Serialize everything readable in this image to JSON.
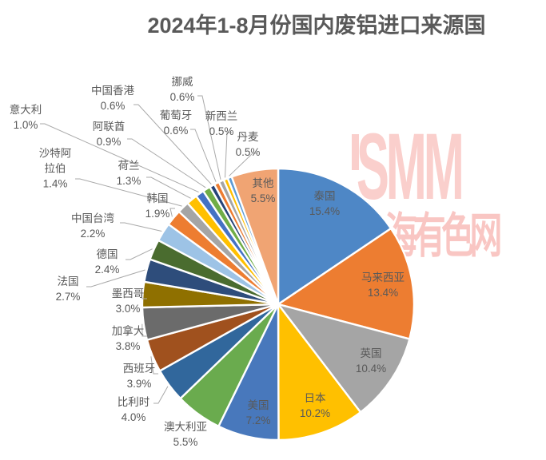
{
  "title": "2024年1-8月份国内废铝进口来源国",
  "watermark": {
    "brand": "SMM",
    "site": "上海有色网",
    "color": "#FACFCC"
  },
  "colors": {
    "background": "#FFFFFF",
    "title_text": "#595959",
    "label_text": "#595959",
    "leader_line": "#A9A9A9",
    "slice_border": "#FFFFFF"
  },
  "chart_data": {
    "type": "pie",
    "title": "2024年1-8月份国内废铝进口来源国",
    "value_format": "percent",
    "rotation": "clockwise-from-12-oclock",
    "legend": "none",
    "label_style": "category name + percent; large slices labeled inside, small slices outside with leader lines",
    "series": [
      {
        "name": "泰国",
        "value": 15.4,
        "pct": "15.4%",
        "color": "#4E87C6"
      },
      {
        "name": "马来西亚",
        "value": 13.4,
        "pct": "13.4%",
        "color": "#ED7D31"
      },
      {
        "name": "英国",
        "value": 10.4,
        "pct": "10.4%",
        "color": "#A5A5A5"
      },
      {
        "name": "日本",
        "value": 10.2,
        "pct": "10.2%",
        "color": "#FFC000"
      },
      {
        "name": "美国",
        "value": 7.2,
        "pct": "7.2%",
        "color": "#4878BC"
      },
      {
        "name": "澳大利亚",
        "value": 5.5,
        "pct": "5.5%",
        "color": "#6AAB4E"
      },
      {
        "name": "比利时",
        "value": 4.0,
        "pct": "4.0%",
        "color": "#31679C"
      },
      {
        "name": "西班牙",
        "value": 3.9,
        "pct": "3.9%",
        "color": "#A0511E"
      },
      {
        "name": "加拿大",
        "value": 3.8,
        "pct": "3.8%",
        "color": "#6B6B6B"
      },
      {
        "name": "墨西哥",
        "value": 3.0,
        "pct": "3.0%",
        "color": "#8F7000"
      },
      {
        "name": "法国",
        "value": 2.7,
        "pct": "2.7%",
        "color": "#2E4D7B"
      },
      {
        "name": "德国",
        "value": 2.4,
        "pct": "2.4%",
        "color": "#4A6C2F"
      },
      {
        "name": "中国台湾",
        "value": 2.2,
        "pct": "2.2%",
        "color": "#9DC3E6"
      },
      {
        "name": "韩国",
        "value": 1.9,
        "pct": "1.9%",
        "color": "#ED7D31"
      },
      {
        "name": "沙特阿拉伯",
        "value": 1.4,
        "pct": "1.4%",
        "color": "#A5A5A5"
      },
      {
        "name": "荷兰",
        "value": 1.3,
        "pct": "1.3%",
        "color": "#FFC000"
      },
      {
        "name": "意大利",
        "value": 1.0,
        "pct": "1.0%",
        "color": "#4472C4"
      },
      {
        "name": "阿联酋",
        "value": 0.9,
        "pct": "0.9%",
        "color": "#70AD47"
      },
      {
        "name": "中国香港",
        "value": 0.6,
        "pct": "0.6%",
        "color": "#264478"
      },
      {
        "name": "葡萄牙",
        "value": 0.6,
        "pct": "0.6%",
        "color": "#ED7D31"
      },
      {
        "name": "挪威",
        "value": 0.6,
        "pct": "0.6%",
        "color": "#A5A5A5"
      },
      {
        "name": "新西兰",
        "value": 0.5,
        "pct": "0.5%",
        "color": "#FFC000"
      },
      {
        "name": "丹麦",
        "value": 0.5,
        "pct": "0.5%",
        "color": "#5B9BD5"
      },
      {
        "name": "其他",
        "value": 5.5,
        "pct": "5.5%",
        "color": "#F0A473"
      }
    ]
  }
}
